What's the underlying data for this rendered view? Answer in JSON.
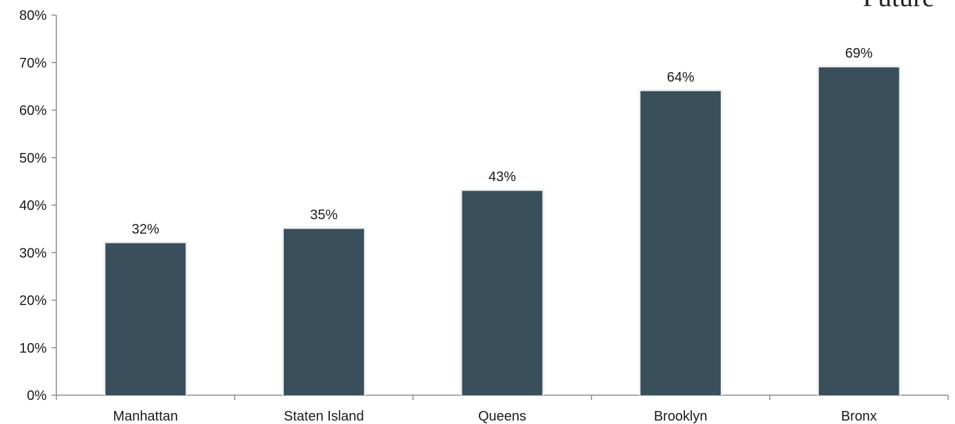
{
  "corner_text": "Future",
  "colors": {
    "bar": "#3a4f5c",
    "axis": "#8a8a8a",
    "text": "#1a1a1a"
  },
  "chart_data": {
    "type": "bar",
    "categories": [
      "Manhattan",
      "Staten Island",
      "Queens",
      "Brooklyn",
      "Bronx"
    ],
    "values": [
      32,
      35,
      43,
      64,
      69
    ],
    "data_labels": [
      "32%",
      "35%",
      "43%",
      "64%",
      "69%"
    ],
    "title": "",
    "xlabel": "",
    "ylabel": "",
    "ylim": [
      0,
      80
    ],
    "yticks": [
      0,
      10,
      20,
      30,
      40,
      50,
      60,
      70,
      80
    ],
    "ytick_labels": [
      "0%",
      "10%",
      "20%",
      "30%",
      "40%",
      "50%",
      "60%",
      "70%",
      "80%"
    ],
    "grid": false,
    "legend": "none"
  }
}
